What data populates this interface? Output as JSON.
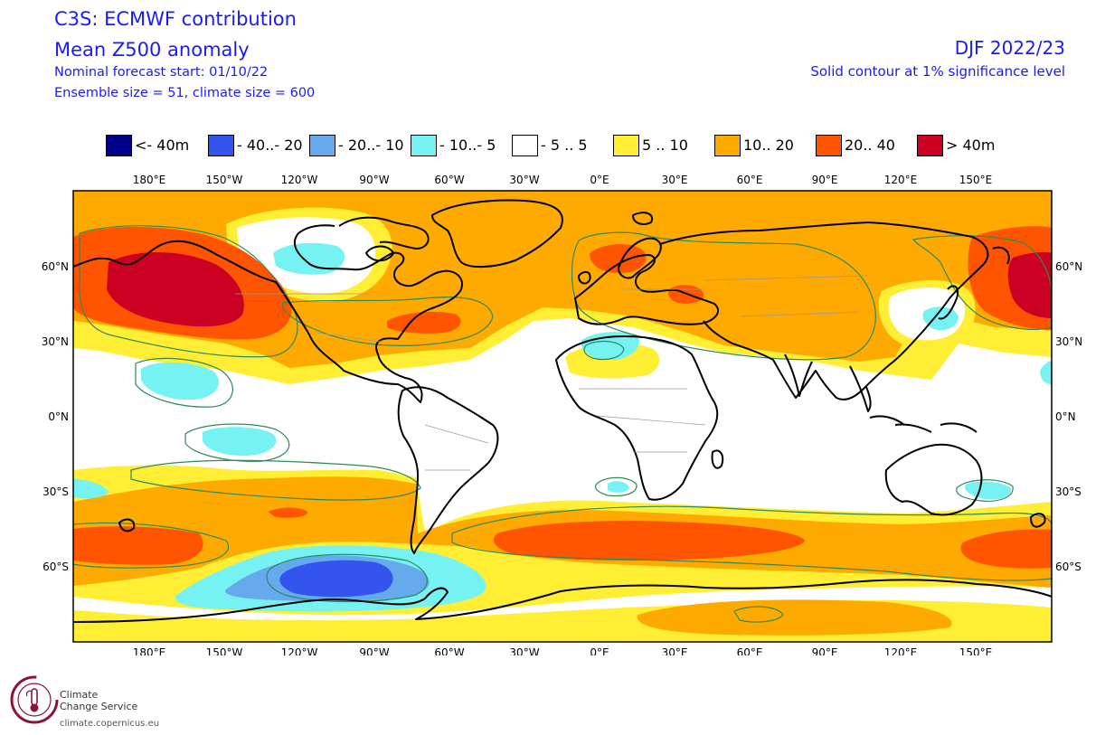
{
  "header": {
    "title": "C3S: ECMWF contribution",
    "variable": "Mean Z500 anomaly",
    "forecast_start": "Nominal forecast start: 01/10/22",
    "ensemble": "Ensemble size = 51, climate size = 600",
    "season": "DJF 2022/23",
    "significance": "Solid contour at 1% significance level"
  },
  "legend": [
    {
      "label": "<- 40m",
      "color": "#00008b"
    },
    {
      "label": "- 40..- 20",
      "color": "#3355ee"
    },
    {
      "label": "- 20..- 10",
      "color": "#66aaee"
    },
    {
      "label": "- 10..- 5",
      "color": "#77f2f2"
    },
    {
      "label": "- 5 .. 5",
      "color": "#ffffff"
    },
    {
      "label": "5 .. 10",
      "color": "#ffee33"
    },
    {
      "label": "10.. 20",
      "color": "#ffaa00"
    },
    {
      "label": "20.. 40",
      "color": "#ff5500"
    },
    {
      "label": ">  40m",
      "color": "#cc0022"
    }
  ],
  "axes": {
    "lon_labels": [
      "180°E",
      "150°W",
      "120°W",
      "90°W",
      "60°W",
      "30°W",
      "0°E",
      "30°E",
      "60°E",
      "90°E",
      "120°E",
      "150°E"
    ],
    "lat_labels": [
      "60°N",
      "30°N",
      "0°N",
      "30°S",
      "60°S"
    ]
  },
  "colors": {
    "significance_contour": "#2e8b57",
    "coastline": "#000000",
    "text": "#1a1aff"
  },
  "logo": {
    "line1": "Climate",
    "line2": "Change Service",
    "url": "climate.copernicus.eu"
  }
}
